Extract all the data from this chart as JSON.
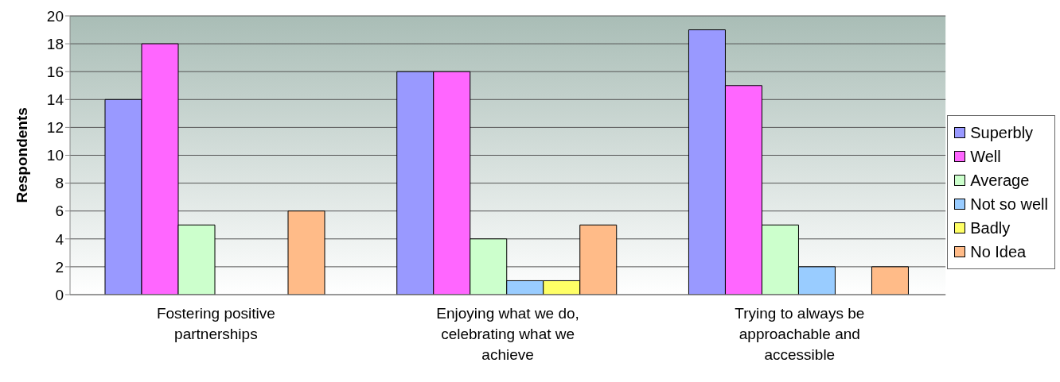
{
  "chart_data": {
    "type": "bar",
    "ylabel": "Respondents",
    "categories": [
      "Fostering positive partnerships",
      "Enjoying what we do, celebrating what we achieve",
      "Trying to always be approachable and accessible"
    ],
    "series": [
      {
        "name": "Superbly",
        "color": "#9999ff",
        "values": [
          14,
          16,
          19
        ]
      },
      {
        "name": "Well",
        "color": "#ff66ff",
        "values": [
          18,
          16,
          15
        ]
      },
      {
        "name": "Average",
        "color": "#ccffcc",
        "values": [
          5,
          4,
          5
        ]
      },
      {
        "name": "Not so well",
        "color": "#99ccff",
        "values": [
          0,
          1,
          2
        ]
      },
      {
        "name": "Badly",
        "color": "#ffff66",
        "values": [
          0,
          1,
          0
        ]
      },
      {
        "name": "No Idea",
        "color": "#ffbb88",
        "values": [
          6,
          5,
          2
        ]
      }
    ],
    "ylim": [
      0,
      20
    ],
    "yticks": [
      0,
      2,
      4,
      6,
      8,
      10,
      12,
      14,
      16,
      18,
      20
    ],
    "grid": "y",
    "legend": "right"
  }
}
